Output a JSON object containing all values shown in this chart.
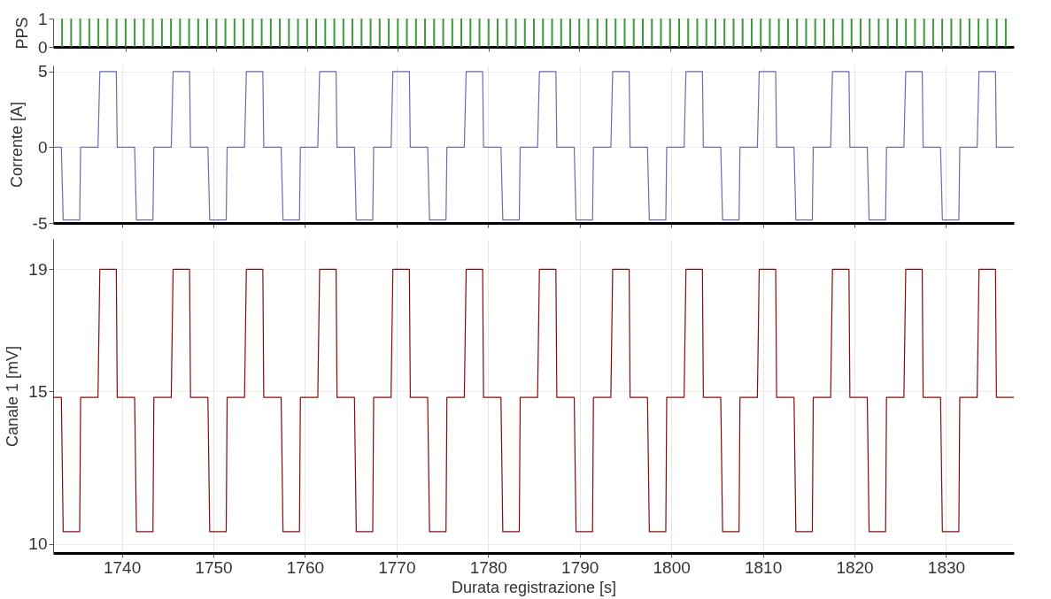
{
  "chart_data": [
    {
      "type": "bar",
      "ylabel": "PPS",
      "color": "#3c9a3c",
      "x": [
        1733,
        1734,
        1735,
        1736,
        1737,
        1738,
        1739,
        1740,
        1741,
        1742,
        1743,
        1744,
        1745,
        1746,
        1747,
        1748,
        1749,
        1750,
        1751,
        1752,
        1753,
        1754,
        1755,
        1756,
        1757,
        1758,
        1759,
        1760,
        1761,
        1762,
        1763,
        1764,
        1765,
        1766,
        1767,
        1768,
        1769,
        1770,
        1771,
        1772,
        1773,
        1774,
        1775,
        1776,
        1777,
        1778,
        1779,
        1780,
        1781,
        1782,
        1783,
        1784,
        1785,
        1786,
        1787,
        1788,
        1789,
        1790,
        1791,
        1792,
        1793,
        1794,
        1795,
        1796,
        1797,
        1798,
        1799,
        1800,
        1801,
        1802,
        1803,
        1804,
        1805,
        1806,
        1807,
        1808,
        1809,
        1810,
        1811,
        1812,
        1813,
        1814,
        1815,
        1816,
        1817,
        1818,
        1819,
        1820,
        1821,
        1822,
        1823,
        1824,
        1825,
        1826,
        1827,
        1828,
        1829,
        1830,
        1831,
        1832,
        1833,
        1834,
        1835,
        1836,
        1837
      ],
      "values": [
        1,
        1,
        1,
        1,
        1,
        1,
        1,
        1,
        1,
        1,
        1,
        1,
        1,
        1,
        1,
        1,
        1,
        1,
        1,
        1,
        1,
        1,
        1,
        1,
        1,
        1,
        1,
        1,
        1,
        1,
        1,
        1,
        1,
        1,
        1,
        1,
        1,
        1,
        1,
        1,
        1,
        1,
        1,
        1,
        1,
        1,
        1,
        1,
        1,
        1,
        1,
        1,
        1,
        1,
        1,
        1,
        1,
        1,
        1,
        1,
        1,
        1,
        1,
        1,
        1,
        1,
        1,
        1,
        1,
        1,
        1,
        1,
        1,
        1,
        1,
        1,
        1,
        1,
        1,
        1,
        1,
        1,
        1,
        1,
        1,
        1,
        1,
        1,
        1,
        1,
        1,
        1,
        1,
        1,
        1,
        1,
        1,
        1,
        1,
        1,
        1,
        1,
        1,
        1,
        1
      ],
      "xlim": [
        1732.5,
        1837.4
      ],
      "xticks": [
        1740,
        1750,
        1760,
        1770,
        1780,
        1790,
        1800,
        1810,
        1820,
        1830
      ],
      "ylim": [
        0,
        1
      ],
      "yticks": [
        0,
        1
      ],
      "grid": true,
      "tick_labels": "y"
    },
    {
      "type": "line",
      "ylabel": "Corrente [A]",
      "color": "#6b6bb0",
      "x": [
        1732.5,
        1733.4,
        1733.6,
        1735.4,
        1735.5,
        1737.4,
        1737.6,
        1739.4,
        1739.5,
        1741.4,
        1741.6,
        1743.4,
        1743.5,
        1745.4,
        1745.6,
        1747.4,
        1747.5,
        1749.4,
        1749.6,
        1751.4,
        1751.5,
        1753.4,
        1753.6,
        1755.4,
        1755.5,
        1757.4,
        1757.6,
        1759.4,
        1759.5,
        1761.4,
        1761.6,
        1763.4,
        1763.5,
        1765.4,
        1765.6,
        1767.4,
        1767.5,
        1769.4,
        1769.6,
        1771.4,
        1771.5,
        1773.4,
        1773.6,
        1775.4,
        1775.5,
        1777.4,
        1777.6,
        1779.4,
        1779.5,
        1781.4,
        1781.6,
        1783.4,
        1783.5,
        1785.4,
        1785.6,
        1787.4,
        1787.5,
        1789.4,
        1789.6,
        1791.4,
        1791.5,
        1793.4,
        1793.6,
        1795.4,
        1795.5,
        1797.4,
        1797.6,
        1799.4,
        1799.5,
        1801.4,
        1801.6,
        1803.4,
        1803.5,
        1805.4,
        1805.6,
        1807.4,
        1807.5,
        1809.4,
        1809.6,
        1811.4,
        1811.5,
        1813.4,
        1813.6,
        1815.4,
        1815.5,
        1817.4,
        1817.6,
        1819.4,
        1819.5,
        1821.4,
        1821.6,
        1823.4,
        1823.5,
        1825.4,
        1825.6,
        1827.4,
        1827.5,
        1829.4,
        1829.6,
        1831.4,
        1831.5,
        1833.4,
        1833.6,
        1835.4,
        1835.5,
        1837.4
      ],
      "values": [
        0,
        0,
        -4.8,
        -4.8,
        0,
        0,
        5,
        5,
        0,
        0,
        -4.8,
        -4.8,
        0,
        0,
        5,
        5,
        0,
        0,
        -4.8,
        -4.8,
        0,
        0,
        5,
        5,
        0,
        0,
        -4.8,
        -4.8,
        0,
        0,
        5,
        5,
        0,
        0,
        -4.8,
        -4.8,
        0,
        0,
        5,
        5,
        0,
        0,
        -4.8,
        -4.8,
        0,
        0,
        5,
        5,
        0,
        0,
        -4.8,
        -4.8,
        0,
        0,
        5,
        5,
        0,
        0,
        -4.8,
        -4.8,
        0,
        0,
        5,
        5,
        0,
        0,
        -4.8,
        -4.8,
        0,
        0,
        5,
        5,
        0,
        0,
        -4.8,
        -4.8,
        0,
        0,
        5,
        5,
        0,
        0,
        -4.8,
        -4.8,
        0,
        0,
        5,
        5,
        0,
        0,
        -4.8,
        -4.8,
        0,
        0,
        5,
        5,
        0,
        0,
        -4.8,
        -4.8,
        0,
        0,
        5,
        5,
        0,
        0
      ],
      "xlim": [
        1732.5,
        1837.4
      ],
      "xticks": [
        1740,
        1750,
        1760,
        1770,
        1780,
        1790,
        1800,
        1810,
        1820,
        1830
      ],
      "ylim": [
        -5,
        5.4
      ],
      "yticks": [
        -5,
        0,
        5
      ],
      "grid": true,
      "tick_labels": "y"
    },
    {
      "type": "line",
      "xlabel": "Durata registrazione [s]",
      "ylabel": "Canale 1 [mV]",
      "color": "#8b0a0a",
      "x": [
        1732.5,
        1733.4,
        1733.6,
        1735.4,
        1735.5,
        1737.4,
        1737.6,
        1739.4,
        1739.5,
        1741.4,
        1741.6,
        1743.4,
        1743.5,
        1745.4,
        1745.6,
        1747.4,
        1747.5,
        1749.4,
        1749.6,
        1751.4,
        1751.5,
        1753.4,
        1753.6,
        1755.4,
        1755.5,
        1757.4,
        1757.6,
        1759.4,
        1759.5,
        1761.4,
        1761.6,
        1763.4,
        1763.5,
        1765.4,
        1765.6,
        1767.4,
        1767.5,
        1769.4,
        1769.6,
        1771.4,
        1771.5,
        1773.4,
        1773.6,
        1775.4,
        1775.5,
        1777.4,
        1777.6,
        1779.4,
        1779.5,
        1781.4,
        1781.6,
        1783.4,
        1783.5,
        1785.4,
        1785.6,
        1787.4,
        1787.5,
        1789.4,
        1789.6,
        1791.4,
        1791.5,
        1793.4,
        1793.6,
        1795.4,
        1795.5,
        1797.4,
        1797.6,
        1799.4,
        1799.5,
        1801.4,
        1801.6,
        1803.4,
        1803.5,
        1805.4,
        1805.6,
        1807.4,
        1807.5,
        1809.4,
        1809.6,
        1811.4,
        1811.5,
        1813.4,
        1813.6,
        1815.4,
        1815.5,
        1817.4,
        1817.6,
        1819.4,
        1819.5,
        1821.4,
        1821.6,
        1823.4,
        1823.5,
        1825.4,
        1825.6,
        1827.4,
        1827.5,
        1829.4,
        1829.6,
        1831.4,
        1831.5,
        1833.4,
        1833.6,
        1835.4,
        1835.5,
        1837.4
      ],
      "values": [
        14.8,
        14.8,
        10.4,
        10.4,
        14.8,
        14.8,
        19,
        19,
        14.8,
        14.8,
        10.4,
        10.4,
        14.8,
        14.8,
        19,
        19,
        14.8,
        14.8,
        10.4,
        10.4,
        14.8,
        14.8,
        19,
        19,
        14.8,
        14.8,
        10.4,
        10.4,
        14.8,
        14.8,
        19,
        19,
        14.8,
        14.8,
        10.4,
        10.4,
        14.8,
        14.8,
        19,
        19,
        14.8,
        14.8,
        10.4,
        10.4,
        14.8,
        14.8,
        19,
        19,
        14.8,
        14.8,
        10.4,
        10.4,
        14.8,
        14.8,
        19,
        19,
        14.8,
        14.8,
        10.4,
        10.4,
        14.8,
        14.8,
        19,
        19,
        14.8,
        14.8,
        10.4,
        10.4,
        14.8,
        14.8,
        19,
        19,
        14.8,
        14.8,
        10.4,
        10.4,
        14.8,
        14.8,
        19,
        19,
        14.8,
        14.8,
        10.4,
        10.4,
        14.8,
        14.8,
        19,
        19,
        14.8,
        14.8,
        10.4,
        10.4,
        14.8,
        14.8,
        19,
        19,
        14.8,
        14.8,
        10.4,
        10.4,
        14.8,
        14.8,
        19,
        19,
        14.8,
        14.8
      ],
      "xlim": [
        1732.5,
        1837.4
      ],
      "xticks": [
        1740,
        1750,
        1760,
        1770,
        1780,
        1790,
        1800,
        1810,
        1820,
        1830
      ],
      "ylim": [
        9.7,
        20
      ],
      "yticks": [
        10,
        15,
        19
      ],
      "grid": true
    }
  ]
}
